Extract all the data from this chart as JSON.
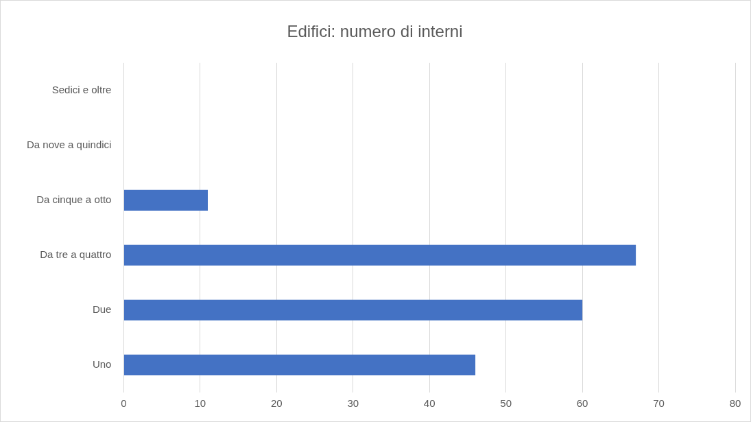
{
  "chart_data": {
    "type": "bar",
    "orientation": "horizontal",
    "title": "Edifici: numero di interni",
    "categories": [
      "Sedici e oltre",
      "Da nove a quindici",
      "Da cinque a otto",
      "Da tre a quattro",
      "Due",
      "Uno"
    ],
    "values": [
      0,
      0,
      11,
      67,
      60,
      46
    ],
    "color": "#4472c4",
    "xlim": [
      0,
      80
    ],
    "xticks": [
      0,
      10,
      20,
      30,
      40,
      50,
      60,
      70,
      80
    ],
    "grid": "x",
    "legend": false
  }
}
